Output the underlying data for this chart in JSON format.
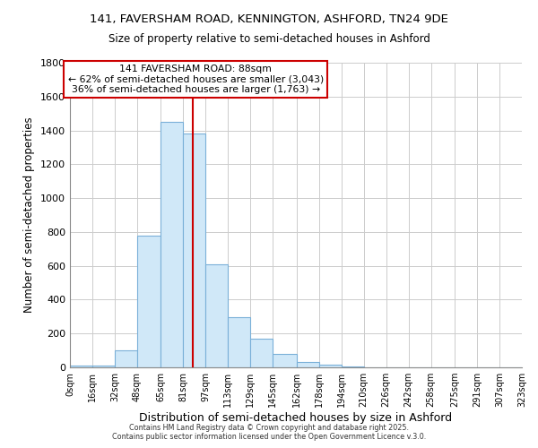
{
  "title_line1": "141, FAVERSHAM ROAD, KENNINGTON, ASHFORD, TN24 9DE",
  "title_line2": "Size of property relative to semi-detached houses in Ashford",
  "xlabel": "Distribution of semi-detached houses by size in Ashford",
  "ylabel": "Number of semi-detached properties",
  "bin_edges": [
    0,
    16,
    32,
    48,
    65,
    81,
    97,
    113,
    129,
    145,
    162,
    178,
    194,
    210,
    226,
    242,
    258,
    275,
    291,
    307,
    323
  ],
  "bin_labels": [
    "0sqm",
    "16sqm",
    "32sqm",
    "48sqm",
    "65sqm",
    "81sqm",
    "97sqm",
    "113sqm",
    "129sqm",
    "145sqm",
    "162sqm",
    "178sqm",
    "194sqm",
    "210sqm",
    "226sqm",
    "242sqm",
    "258sqm",
    "275sqm",
    "291sqm",
    "307sqm",
    "323sqm"
  ],
  "counts": [
    10,
    10,
    100,
    780,
    1450,
    1380,
    610,
    295,
    170,
    80,
    30,
    15,
    5,
    2,
    1,
    1,
    0,
    0,
    0,
    0
  ],
  "bar_color": "#d0e8f8",
  "bar_edge_color": "#7ab0d8",
  "property_size": 88,
  "property_label": "141 FAVERSHAM ROAD: 88sqm",
  "annotation_smaller": "← 62% of semi-detached houses are smaller (3,043)",
  "annotation_larger": "36% of semi-detached houses are larger (1,763) →",
  "vline_color": "#cc0000",
  "annotation_box_color": "#cc0000",
  "ylim": [
    0,
    1800
  ],
  "yticks": [
    0,
    200,
    400,
    600,
    800,
    1000,
    1200,
    1400,
    1600,
    1800
  ],
  "footer": "Contains HM Land Registry data © Crown copyright and database right 2025.\nContains public sector information licensed under the Open Government Licence v.3.0.",
  "bg_color": "#ffffff",
  "grid_color": "#cccccc"
}
